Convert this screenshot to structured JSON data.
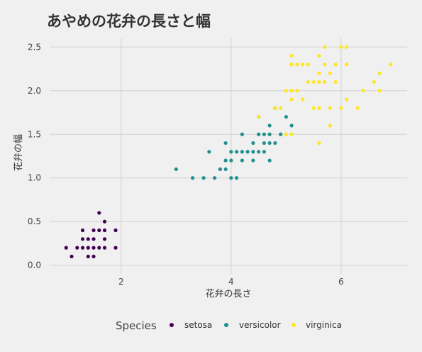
{
  "chart_data": {
    "type": "scatter",
    "title": "あやめの花弁の長さと幅",
    "xlabel": "花弁の長さ",
    "ylabel": "花弁の幅",
    "xlim": [
      0.7,
      7.2
    ],
    "ylim": [
      -0.1,
      2.6
    ],
    "x_ticks": [
      2,
      4,
      6
    ],
    "y_ticks": [
      0.0,
      0.5,
      1.0,
      1.5,
      2.0,
      2.5
    ],
    "x_tick_labels": [
      "2",
      "4",
      "6"
    ],
    "y_tick_labels": [
      "0.0",
      "0.5",
      "1.0",
      "1.5",
      "2.0",
      "2.5"
    ],
    "grid": true,
    "legend": {
      "title": "Species",
      "position": "bottom"
    },
    "series": [
      {
        "name": "setosa",
        "color": "#440154",
        "points": [
          [
            1.0,
            0.2
          ],
          [
            1.1,
            0.1
          ],
          [
            1.2,
            0.2
          ],
          [
            1.3,
            0.2
          ],
          [
            1.3,
            0.3
          ],
          [
            1.3,
            0.4
          ],
          [
            1.4,
            0.1
          ],
          [
            1.4,
            0.2
          ],
          [
            1.4,
            0.3
          ],
          [
            1.5,
            0.1
          ],
          [
            1.5,
            0.2
          ],
          [
            1.5,
            0.3
          ],
          [
            1.5,
            0.4
          ],
          [
            1.6,
            0.2
          ],
          [
            1.6,
            0.4
          ],
          [
            1.6,
            0.6
          ],
          [
            1.7,
            0.2
          ],
          [
            1.7,
            0.3
          ],
          [
            1.7,
            0.4
          ],
          [
            1.7,
            0.5
          ],
          [
            1.9,
            0.2
          ],
          [
            1.9,
            0.4
          ]
        ]
      },
      {
        "name": "versicolor",
        "color": "#21908C",
        "points": [
          [
            3.0,
            1.1
          ],
          [
            3.3,
            1.0
          ],
          [
            3.5,
            1.0
          ],
          [
            3.6,
            1.3
          ],
          [
            3.7,
            1.0
          ],
          [
            3.8,
            1.1
          ],
          [
            3.9,
            1.1
          ],
          [
            3.9,
            1.2
          ],
          [
            3.9,
            1.4
          ],
          [
            4.0,
            1.0
          ],
          [
            4.0,
            1.2
          ],
          [
            4.0,
            1.3
          ],
          [
            4.1,
            1.0
          ],
          [
            4.1,
            1.3
          ],
          [
            4.2,
            1.2
          ],
          [
            4.2,
            1.3
          ],
          [
            4.2,
            1.5
          ],
          [
            4.3,
            1.3
          ],
          [
            4.4,
            1.2
          ],
          [
            4.4,
            1.3
          ],
          [
            4.4,
            1.4
          ],
          [
            4.5,
            1.3
          ],
          [
            4.5,
            1.5
          ],
          [
            4.5,
            1.7
          ],
          [
            4.6,
            1.3
          ],
          [
            4.6,
            1.4
          ],
          [
            4.6,
            1.5
          ],
          [
            4.7,
            1.2
          ],
          [
            4.7,
            1.4
          ],
          [
            4.7,
            1.5
          ],
          [
            4.7,
            1.6
          ],
          [
            4.8,
            1.4
          ],
          [
            4.8,
            1.8
          ],
          [
            4.9,
            1.5
          ],
          [
            5.0,
            1.7
          ],
          [
            5.1,
            1.6
          ]
        ]
      },
      {
        "name": "virginica",
        "color": "#FDE725",
        "points": [
          [
            4.5,
            1.7
          ],
          [
            4.8,
            1.8
          ],
          [
            4.9,
            1.8
          ],
          [
            5.0,
            1.5
          ],
          [
            5.0,
            2.0
          ],
          [
            5.1,
            1.5
          ],
          [
            5.1,
            1.9
          ],
          [
            5.1,
            2.0
          ],
          [
            5.1,
            2.3
          ],
          [
            5.1,
            2.4
          ],
          [
            5.2,
            2.0
          ],
          [
            5.2,
            2.3
          ],
          [
            5.3,
            1.9
          ],
          [
            5.3,
            2.3
          ],
          [
            5.4,
            2.1
          ],
          [
            5.4,
            2.3
          ],
          [
            5.5,
            1.8
          ],
          [
            5.5,
            2.1
          ],
          [
            5.6,
            1.4
          ],
          [
            5.6,
            1.8
          ],
          [
            5.6,
            2.1
          ],
          [
            5.6,
            2.2
          ],
          [
            5.6,
            2.4
          ],
          [
            5.7,
            2.1
          ],
          [
            5.7,
            2.3
          ],
          [
            5.7,
            2.5
          ],
          [
            5.8,
            1.6
          ],
          [
            5.8,
            1.8
          ],
          [
            5.8,
            2.2
          ],
          [
            5.9,
            2.1
          ],
          [
            5.9,
            2.3
          ],
          [
            6.0,
            1.8
          ],
          [
            6.0,
            2.5
          ],
          [
            6.1,
            1.9
          ],
          [
            6.1,
            2.3
          ],
          [
            6.1,
            2.5
          ],
          [
            6.3,
            1.8
          ],
          [
            6.4,
            2.0
          ],
          [
            6.6,
            2.1
          ],
          [
            6.7,
            2.0
          ],
          [
            6.7,
            2.2
          ],
          [
            6.9,
            2.3
          ]
        ]
      }
    ]
  }
}
